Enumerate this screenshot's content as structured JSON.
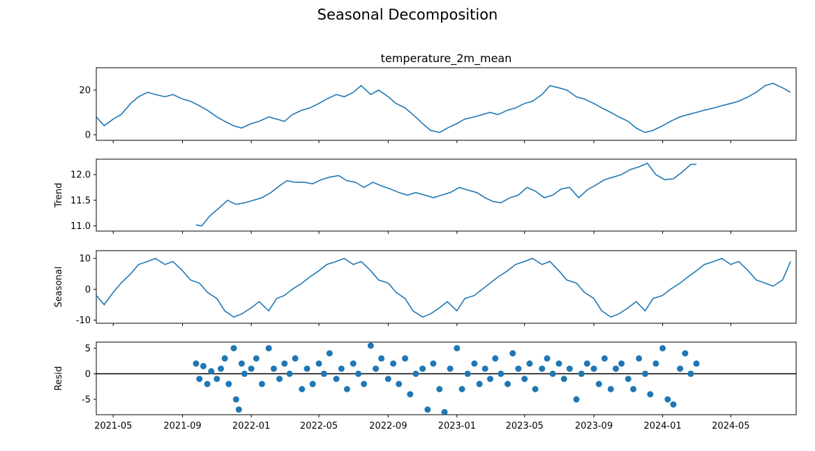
{
  "figure": {
    "suptitle": "Seasonal Decomposition"
  },
  "chart_data": [
    {
      "type": "line",
      "panel": "observed",
      "title": "temperature_2m_mean",
      "ylabel": "",
      "ylim": [
        -2.5,
        30
      ],
      "yticks": [
        0,
        20
      ],
      "line_color": "#1f77b4",
      "x": [
        "2021-04-01",
        "2021-04-15",
        "2021-05-01",
        "2021-05-15",
        "2021-06-01",
        "2021-06-15",
        "2021-07-01",
        "2021-07-15",
        "2021-08-01",
        "2021-08-15",
        "2021-09-01",
        "2021-09-15",
        "2021-10-01",
        "2021-10-15",
        "2021-11-01",
        "2021-11-15",
        "2021-12-01",
        "2021-12-15",
        "2022-01-01",
        "2022-01-15",
        "2022-02-01",
        "2022-02-15",
        "2022-03-01",
        "2022-03-15",
        "2022-04-01",
        "2022-04-15",
        "2022-05-01",
        "2022-05-15",
        "2022-06-01",
        "2022-06-15",
        "2022-07-01",
        "2022-07-15",
        "2022-08-01",
        "2022-08-15",
        "2022-09-01",
        "2022-09-15",
        "2022-10-01",
        "2022-10-15",
        "2022-11-01",
        "2022-11-15",
        "2022-12-01",
        "2022-12-15",
        "2023-01-01",
        "2023-01-15",
        "2023-02-01",
        "2023-02-15",
        "2023-03-01",
        "2023-03-15",
        "2023-04-01",
        "2023-04-15",
        "2023-05-01",
        "2023-05-15",
        "2023-06-01",
        "2023-06-15",
        "2023-07-01",
        "2023-07-15",
        "2023-08-01",
        "2023-08-15",
        "2023-09-01",
        "2023-09-15",
        "2023-10-01",
        "2023-10-15",
        "2023-11-01",
        "2023-11-15",
        "2023-12-01",
        "2023-12-15",
        "2024-01-01",
        "2024-01-15",
        "2024-02-01",
        "2024-02-15",
        "2024-03-01",
        "2024-03-15",
        "2024-04-01",
        "2024-04-15",
        "2024-05-01",
        "2024-05-15",
        "2024-06-01",
        "2024-06-15",
        "2024-07-01",
        "2024-07-15",
        "2024-08-01",
        "2024-08-15"
      ],
      "y": [
        8,
        4,
        7,
        9,
        14,
        17,
        19,
        18,
        17,
        18,
        16,
        15,
        13,
        11,
        8,
        6,
        4,
        3,
        5,
        6,
        8,
        7,
        6,
        9,
        11,
        12,
        14,
        16,
        18,
        17,
        19,
        22,
        18,
        20,
        17,
        14,
        12,
        9,
        5,
        2,
        1,
        3,
        5,
        7,
        8,
        9,
        10,
        9,
        11,
        12,
        14,
        15,
        18,
        22,
        21,
        20,
        17,
        16,
        14,
        12,
        10,
        8,
        6,
        3,
        1,
        2,
        4,
        6,
        8,
        9,
        10,
        11,
        12,
        13,
        14,
        15,
        17,
        19,
        22,
        23,
        21,
        19
      ]
    },
    {
      "type": "line",
      "panel": "trend",
      "title": "",
      "ylabel": "Trend",
      "ylim": [
        10.9,
        12.3
      ],
      "yticks": [
        11.0,
        11.5,
        12.0
      ],
      "line_color": "#1f77b4",
      "x": [
        "2021-09-25",
        "2021-10-05",
        "2021-10-20",
        "2021-11-05",
        "2021-11-20",
        "2021-12-05",
        "2021-12-20",
        "2022-01-05",
        "2022-01-20",
        "2022-02-05",
        "2022-02-20",
        "2022-03-05",
        "2022-03-20",
        "2022-04-05",
        "2022-04-20",
        "2022-05-05",
        "2022-05-20",
        "2022-06-05",
        "2022-06-20",
        "2022-07-05",
        "2022-07-20",
        "2022-08-05",
        "2022-08-20",
        "2022-09-05",
        "2022-09-20",
        "2022-10-05",
        "2022-10-20",
        "2022-11-05",
        "2022-11-20",
        "2022-12-05",
        "2022-12-20",
        "2023-01-05",
        "2023-01-20",
        "2023-02-05",
        "2023-02-20",
        "2023-03-05",
        "2023-03-20",
        "2023-04-05",
        "2023-04-20",
        "2023-05-05",
        "2023-05-20",
        "2023-06-05",
        "2023-06-20",
        "2023-07-05",
        "2023-07-20",
        "2023-08-05",
        "2023-08-20",
        "2023-09-05",
        "2023-09-20",
        "2023-10-05",
        "2023-10-20",
        "2023-11-05",
        "2023-11-20",
        "2023-12-05",
        "2023-12-20",
        "2024-01-05",
        "2024-01-20",
        "2024-02-05",
        "2024-02-20",
        "2024-03-01"
      ],
      "y": [
        11.02,
        11.0,
        11.2,
        11.35,
        11.5,
        11.42,
        11.45,
        11.5,
        11.55,
        11.65,
        11.78,
        11.88,
        11.85,
        11.85,
        11.82,
        11.9,
        11.95,
        11.98,
        11.88,
        11.85,
        11.75,
        11.85,
        11.78,
        11.72,
        11.65,
        11.6,
        11.65,
        11.6,
        11.55,
        11.6,
        11.65,
        11.75,
        11.7,
        11.65,
        11.55,
        11.48,
        11.45,
        11.55,
        11.6,
        11.75,
        11.68,
        11.55,
        11.6,
        11.72,
        11.75,
        11.55,
        11.7,
        11.8,
        11.9,
        11.95,
        12.0,
        12.1,
        12.15,
        12.22,
        12.0,
        11.9,
        11.92,
        12.05,
        12.2,
        12.2
      ]
    },
    {
      "type": "line",
      "panel": "seasonal",
      "title": "",
      "ylabel": "Seasonal",
      "ylim": [
        -11,
        12.5
      ],
      "yticks": [
        -10,
        0,
        10
      ],
      "line_color": "#1f77b4",
      "x": [
        "2021-04-01",
        "2021-04-15",
        "2021-05-01",
        "2021-05-15",
        "2021-06-01",
        "2021-06-15",
        "2021-07-01",
        "2021-07-15",
        "2021-08-01",
        "2021-08-15",
        "2021-09-01",
        "2021-09-15",
        "2021-10-01",
        "2021-10-15",
        "2021-11-01",
        "2021-11-15",
        "2021-12-01",
        "2021-12-15",
        "2022-01-01",
        "2022-01-15",
        "2022-02-01",
        "2022-02-15",
        "2022-03-01",
        "2022-03-15",
        "2022-04-01",
        "2022-04-15",
        "2022-05-01",
        "2022-05-15",
        "2022-06-01",
        "2022-06-15",
        "2022-07-01",
        "2022-07-15",
        "2022-08-01",
        "2022-08-15",
        "2022-09-01",
        "2022-09-15",
        "2022-10-01",
        "2022-10-15",
        "2022-11-01",
        "2022-11-15",
        "2022-12-01",
        "2022-12-15",
        "2023-01-01",
        "2023-01-15",
        "2023-02-01",
        "2023-02-15",
        "2023-03-01",
        "2023-03-15",
        "2023-04-01",
        "2023-04-15",
        "2023-05-01",
        "2023-05-15",
        "2023-06-01",
        "2023-06-15",
        "2023-07-01",
        "2023-07-15",
        "2023-08-01",
        "2023-08-15",
        "2023-09-01",
        "2023-09-15",
        "2023-10-01",
        "2023-10-15",
        "2023-11-01",
        "2023-11-15",
        "2023-12-01",
        "2023-12-15",
        "2024-01-01",
        "2024-01-15",
        "2024-02-01",
        "2024-02-15",
        "2024-03-01",
        "2024-03-15",
        "2024-04-01",
        "2024-04-15",
        "2024-05-01",
        "2024-05-15",
        "2024-06-01",
        "2024-06-15",
        "2024-07-01",
        "2024-07-15",
        "2024-08-01",
        "2024-08-15"
      ],
      "y": [
        -2,
        -5,
        -1,
        2,
        5,
        8,
        9,
        10,
        8,
        9,
        6,
        3,
        2,
        -1,
        -3,
        -7,
        -9,
        -8,
        -6,
        -4,
        -7,
        -3,
        -2,
        0,
        2,
        4,
        6,
        8,
        9,
        10,
        8,
        9,
        6,
        3,
        2,
        -1,
        -3,
        -7,
        -9,
        -8,
        -6,
        -4,
        -7,
        -3,
        -2,
        0,
        2,
        4,
        6,
        8,
        9,
        10,
        8,
        9,
        6,
        3,
        2,
        -1,
        -3,
        -7,
        -9,
        -8,
        -6,
        -4,
        -7,
        -3,
        -2,
        0,
        2,
        4,
        6,
        8,
        9,
        10,
        8,
        9,
        6,
        3,
        2,
        1,
        3,
        9
      ]
    },
    {
      "type": "scatter",
      "panel": "resid",
      "title": "",
      "ylabel": "Resid",
      "ylim": [
        -8,
        6.2
      ],
      "yticks": [
        -5,
        0,
        5
      ],
      "zero_line": true,
      "marker_color": "#1f77b4",
      "x": [
        "2021-09-25",
        "2021-10-01",
        "2021-10-08",
        "2021-10-15",
        "2021-10-22",
        "2021-11-01",
        "2021-11-08",
        "2021-11-15",
        "2021-11-22",
        "2021-12-01",
        "2021-12-05",
        "2021-12-10",
        "2021-12-15",
        "2021-12-20",
        "2022-01-01",
        "2022-01-10",
        "2022-01-20",
        "2022-02-01",
        "2022-02-10",
        "2022-02-20",
        "2022-03-01",
        "2022-03-10",
        "2022-03-20",
        "2022-04-01",
        "2022-04-10",
        "2022-04-20",
        "2022-05-01",
        "2022-05-10",
        "2022-05-20",
        "2022-06-01",
        "2022-06-10",
        "2022-06-20",
        "2022-07-01",
        "2022-07-10",
        "2022-07-20",
        "2022-08-01",
        "2022-08-10",
        "2022-08-20",
        "2022-09-01",
        "2022-09-10",
        "2022-09-20",
        "2022-10-01",
        "2022-10-10",
        "2022-10-20",
        "2022-11-01",
        "2022-11-10",
        "2022-11-20",
        "2022-12-01",
        "2022-12-10",
        "2022-12-20",
        "2023-01-01",
        "2023-01-10",
        "2023-01-20",
        "2023-02-01",
        "2023-02-10",
        "2023-02-20",
        "2023-03-01",
        "2023-03-10",
        "2023-03-20",
        "2023-04-01",
        "2023-04-10",
        "2023-04-20",
        "2023-05-01",
        "2023-05-10",
        "2023-05-20",
        "2023-06-01",
        "2023-06-10",
        "2023-06-20",
        "2023-07-01",
        "2023-07-10",
        "2023-07-20",
        "2023-08-01",
        "2023-08-10",
        "2023-08-20",
        "2023-09-01",
        "2023-09-10",
        "2023-09-20",
        "2023-10-01",
        "2023-10-10",
        "2023-10-20",
        "2023-11-01",
        "2023-11-10",
        "2023-11-20",
        "2023-12-01",
        "2023-12-10",
        "2023-12-20",
        "2024-01-01",
        "2024-01-10",
        "2024-01-20",
        "2024-02-01",
        "2024-02-10",
        "2024-02-20",
        "2024-03-01"
      ],
      "y": [
        2,
        -1,
        1.5,
        -2,
        0.5,
        -1,
        1,
        3,
        -2,
        5,
        -5,
        -7,
        2,
        0,
        1,
        3,
        -2,
        5,
        1,
        -1,
        2,
        0,
        3,
        -3,
        1,
        -2,
        2,
        0,
        4,
        -1,
        1,
        -3,
        2,
        0,
        -2,
        5.5,
        1,
        3,
        -1,
        2,
        -2,
        3,
        -4,
        0,
        1,
        -7,
        2,
        -3,
        -7.5,
        1,
        5,
        -3,
        0,
        2,
        -2,
        1,
        -1,
        3,
        0,
        -2,
        4,
        1,
        -1,
        2,
        -3,
        1,
        3,
        0,
        2,
        -1,
        1,
        -5,
        0,
        2,
        1,
        -2,
        3,
        -3,
        1,
        2,
        -1,
        -3,
        3,
        0,
        -4,
        2,
        5,
        -5,
        -6,
        1,
        4,
        0,
        2
      ]
    }
  ],
  "x_axis": {
    "tick_labels": [
      "2021-05",
      "2021-09",
      "2022-01",
      "2022-05",
      "2022-09",
      "2023-01",
      "2023-05",
      "2023-09",
      "2024-01",
      "2024-05"
    ],
    "tick_dates": [
      "2021-05-01",
      "2021-09-01",
      "2022-01-01",
      "2022-05-01",
      "2022-09-01",
      "2023-01-01",
      "2023-05-01",
      "2023-09-01",
      "2024-01-01",
      "2024-05-01"
    ],
    "xlim": [
      "2021-04-01",
      "2024-08-25"
    ]
  }
}
